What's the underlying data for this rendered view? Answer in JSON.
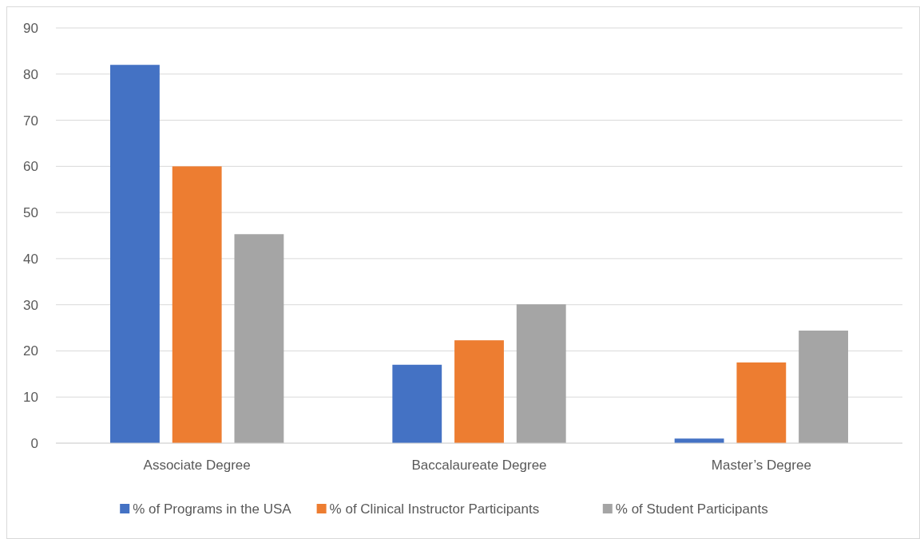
{
  "chart_data": {
    "type": "bar",
    "categories": [
      "Associate Degree",
      "Baccalaureate Degree",
      "Master’s Degree"
    ],
    "series": [
      {
        "name": "% of Programs in the USA",
        "color": "#4472c4",
        "values": [
          82,
          17,
          1
        ]
      },
      {
        "name": "% of Clinical Instructor Participants",
        "color": "#ed7d31",
        "values": [
          60,
          22.3,
          17.5
        ]
      },
      {
        "name": "% of Student Participants",
        "color": "#a5a5a5",
        "values": [
          45.3,
          30.1,
          24.4
        ]
      }
    ],
    "ylim": [
      0,
      90
    ],
    "yticks": [
      0,
      10,
      20,
      30,
      40,
      50,
      60,
      70,
      80,
      90
    ],
    "grid": "y",
    "legend": "bottom"
  }
}
